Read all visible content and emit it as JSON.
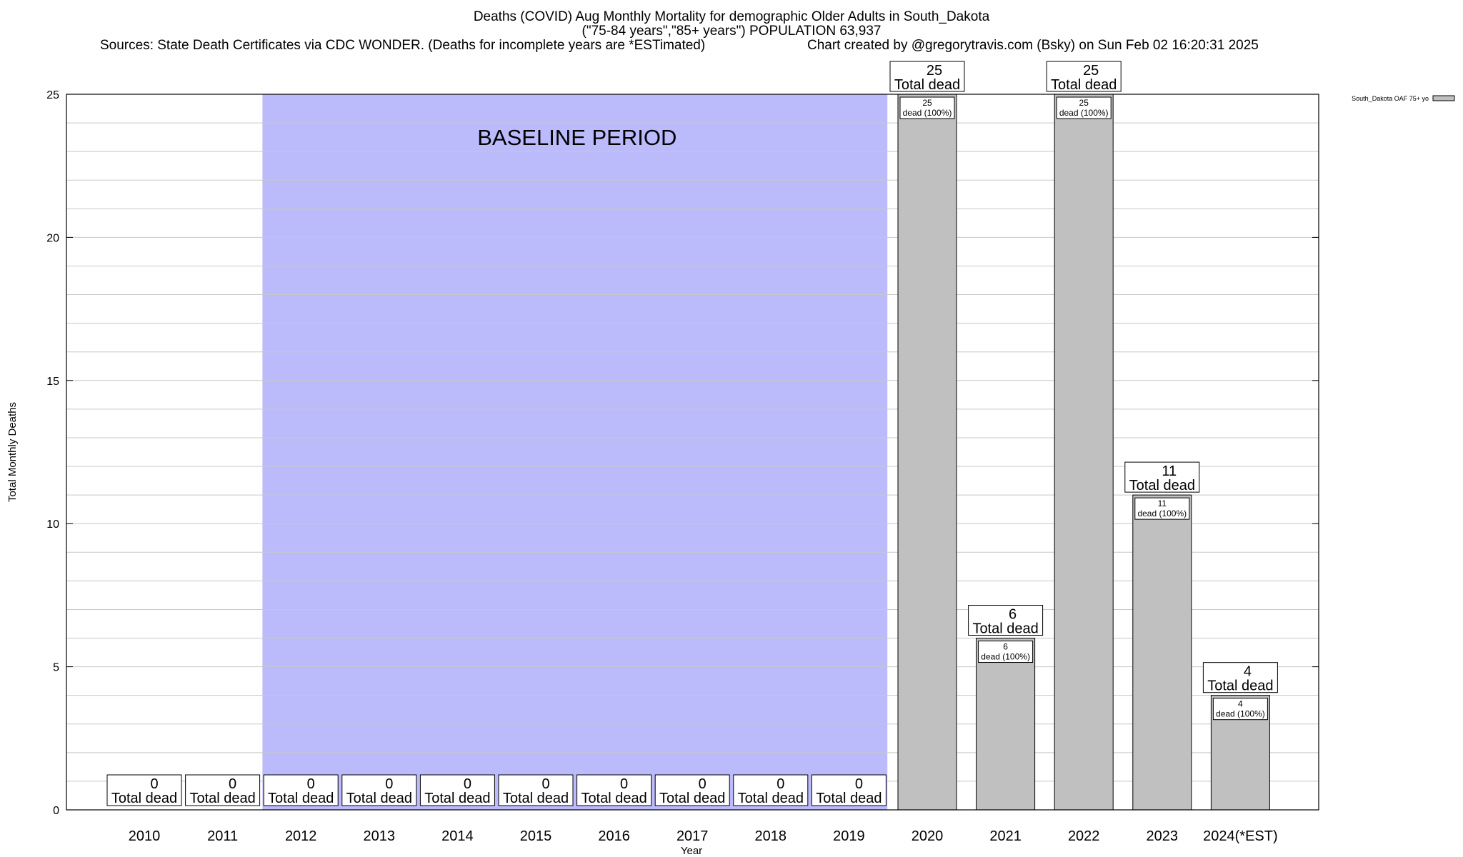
{
  "titles": {
    "line1": "Deaths (COVID) Aug Monthly Mortality for demographic Older Adults in South_Dakota",
    "line2": "(\"75-84 years\",\"85+ years\") POPULATION 63,937",
    "sources": "Sources: State Death Certificates via CDC WONDER. (Deaths for incomplete years are *ESTimated)",
    "credit": "Chart created by @gregorytravis.com (Bsky) on Sun Feb 02 16:20:31 2025"
  },
  "chart_data": {
    "type": "bar",
    "xlabel": "Year",
    "ylabel": "Total Monthly Deaths",
    "ylim": [
      0,
      25
    ],
    "yticks": [
      0,
      5,
      10,
      15,
      20,
      25
    ],
    "grid": "horizontal minor lines",
    "legend_position": "top-right",
    "categories": [
      "2010",
      "2011",
      "2012",
      "2013",
      "2014",
      "2015",
      "2016",
      "2017",
      "2018",
      "2019",
      "2020",
      "2021",
      "2022",
      "2023",
      "2024(*EST)"
    ],
    "series": [
      {
        "name": "South_Dakota OAF 75+ yo",
        "color": "#c0c0c0",
        "values": [
          0,
          0,
          0,
          0,
          0,
          0,
          0,
          0,
          0,
          0,
          25,
          6,
          25,
          11,
          4
        ]
      }
    ],
    "total_label_suffix": "Total dead",
    "inner_label_suffix": "dead (100%)",
    "baseline": {
      "label": "BASELINE PERIOD",
      "from": "2012",
      "to": "2019",
      "color": "#bbbbfb"
    }
  }
}
